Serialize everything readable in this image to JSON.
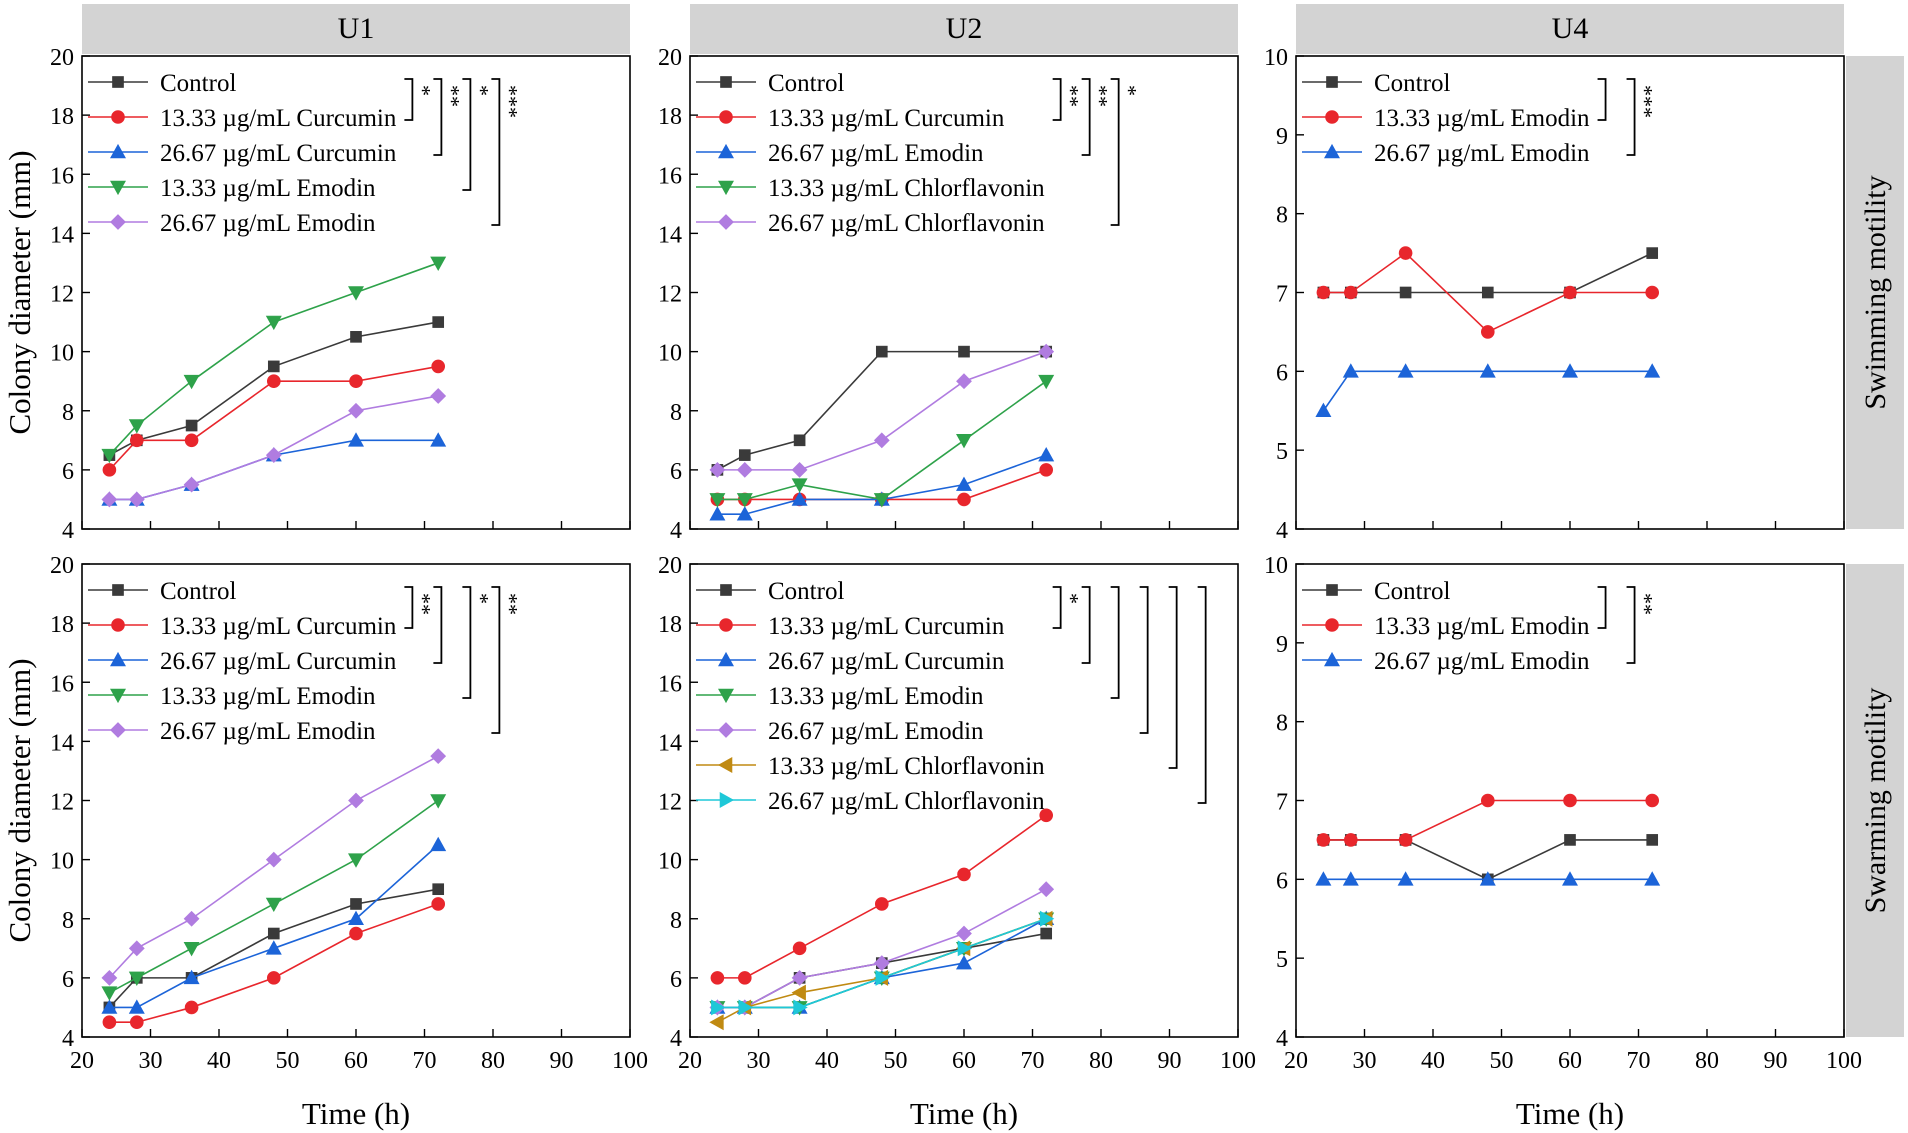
{
  "figure": {
    "column_titles": [
      "U1",
      "U2",
      "U4"
    ],
    "row_titles": [
      "Swimming motility",
      "Swarming motility"
    ],
    "xlabel": "Time (h)",
    "ylabel": "Colony diameter (mm)"
  },
  "colors": {
    "Control": "#3a3a3a",
    "Curcumin_13": "#e8262c",
    "Curcumin_26": "#1c64d8",
    "Emodin_13": "#2ea24a",
    "Emodin_26": "#b07ce0",
    "Chlorflavonin_13": "#c08a12",
    "Chlorflavonin_26": "#1ec8d8"
  },
  "chart_data": [
    {
      "type": "line",
      "panel": "U1",
      "row": "Swimming motility",
      "xlabel": "Time (h)",
      "ylabel": "Colony diameter (mm)",
      "xlim": [
        20,
        100
      ],
      "ylim": [
        4,
        20
      ],
      "xticks": [
        20,
        30,
        40,
        50,
        60,
        70,
        80,
        90,
        100
      ],
      "yticks": [
        4,
        6,
        8,
        10,
        12,
        14,
        16,
        18,
        20
      ],
      "series": [
        {
          "name": "Control",
          "marker": "square",
          "color": "#3a3a3a",
          "x": [
            24,
            28,
            36,
            48,
            60,
            72
          ],
          "y": [
            6.5,
            7,
            7.5,
            9.5,
            10.5,
            11
          ]
        },
        {
          "name": "13.33 µg/mL Curcumin",
          "marker": "circle",
          "color": "#e8262c",
          "x": [
            24,
            28,
            36,
            48,
            60,
            72
          ],
          "y": [
            6,
            7,
            7,
            9,
            9,
            9.5
          ]
        },
        {
          "name": "26.67 µg/mL Curcumin",
          "marker": "triangle-up",
          "color": "#1c64d8",
          "x": [
            24,
            28,
            36,
            48,
            60,
            72
          ],
          "y": [
            5,
            5,
            5.5,
            6.5,
            7,
            7
          ]
        },
        {
          "name": "13.33 µg/mL Emodin",
          "marker": "triangle-down",
          "color": "#2ea24a",
          "x": [
            24,
            28,
            36,
            48,
            60,
            72
          ],
          "y": [
            6.5,
            7.5,
            9,
            11,
            12,
            13
          ]
        },
        {
          "name": "26.67 µg/mL Emodin",
          "marker": "diamond",
          "color": "#b07ce0",
          "x": [
            24,
            28,
            36,
            48,
            60,
            72
          ],
          "y": [
            5,
            5,
            5.5,
            6.5,
            8,
            8.5
          ]
        }
      ],
      "significance": [
        {
          "from": 0,
          "to": 1,
          "label": "*"
        },
        {
          "from": 0,
          "to": 2,
          "label": "**"
        },
        {
          "from": 0,
          "to": 3,
          "label": "*"
        },
        {
          "from": 0,
          "to": 4,
          "label": "***"
        }
      ]
    },
    {
      "type": "line",
      "panel": "U2",
      "row": "Swimming motility",
      "xlabel": "Time (h)",
      "ylabel": "Colony diameter (mm)",
      "xlim": [
        20,
        100
      ],
      "ylim": [
        4,
        20
      ],
      "xticks": [
        20,
        30,
        40,
        50,
        60,
        70,
        80,
        90,
        100
      ],
      "yticks": [
        4,
        6,
        8,
        10,
        12,
        14,
        16,
        18,
        20
      ],
      "series": [
        {
          "name": "Control",
          "marker": "square",
          "color": "#3a3a3a",
          "x": [
            24,
            28,
            36,
            48,
            60,
            72
          ],
          "y": [
            6,
            6.5,
            7,
            10,
            10,
            10
          ]
        },
        {
          "name": "13.33 µg/mL Curcumin",
          "marker": "circle",
          "color": "#e8262c",
          "x": [
            24,
            28,
            36,
            48,
            60,
            72
          ],
          "y": [
            5,
            5,
            5,
            5,
            5,
            6
          ]
        },
        {
          "name": "26.67 µg/mL Emodin",
          "marker": "triangle-up",
          "color": "#1c64d8",
          "x": [
            24,
            28,
            36,
            48,
            60,
            72
          ],
          "y": [
            4.5,
            4.5,
            5,
            5,
            5.5,
            6.5
          ]
        },
        {
          "name": "13.33 µg/mL Chlorflavonin",
          "marker": "triangle-down",
          "color": "#2ea24a",
          "x": [
            24,
            28,
            36,
            48,
            60,
            72
          ],
          "y": [
            5,
            5,
            5.5,
            5,
            7,
            9
          ]
        },
        {
          "name": "26.67 µg/mL Chlorflavonin",
          "marker": "diamond",
          "color": "#b07ce0",
          "x": [
            24,
            28,
            36,
            48,
            60,
            72
          ],
          "y": [
            6,
            6,
            6,
            7,
            9,
            10
          ]
        }
      ],
      "significance": [
        {
          "from": 0,
          "to": 1,
          "label": "**"
        },
        {
          "from": 0,
          "to": 2,
          "label": "**"
        },
        {
          "from": 0,
          "to": 4,
          "label": "*"
        }
      ]
    },
    {
      "type": "line",
      "panel": "U4",
      "row": "Swimming motility",
      "xlabel": "Time (h)",
      "ylabel": "Colony diameter (mm)",
      "xlim": [
        20,
        100
      ],
      "ylim": [
        4,
        10
      ],
      "xticks": [
        20,
        30,
        40,
        50,
        60,
        70,
        80,
        90,
        100
      ],
      "yticks": [
        4,
        5,
        6,
        7,
        8,
        9,
        10
      ],
      "series": [
        {
          "name": "Control",
          "marker": "square",
          "color": "#3a3a3a",
          "x": [
            24,
            28,
            36,
            48,
            60,
            72
          ],
          "y": [
            7,
            7,
            7,
            7,
            7,
            7.5
          ]
        },
        {
          "name": "13.33 µg/mL Emodin",
          "marker": "circle",
          "color": "#e8262c",
          "x": [
            24,
            28,
            36,
            48,
            60,
            72
          ],
          "y": [
            7,
            7,
            7.5,
            6.5,
            7,
            7
          ]
        },
        {
          "name": "26.67 µg/mL Emodin",
          "marker": "triangle-up",
          "color": "#1c64d8",
          "x": [
            24,
            28,
            36,
            48,
            60,
            72
          ],
          "y": [
            5.5,
            6,
            6,
            6,
            6,
            6
          ]
        }
      ],
      "significance": [
        {
          "from": 0,
          "to": 1,
          "label": ""
        },
        {
          "from": 0,
          "to": 2,
          "label": "***"
        }
      ]
    },
    {
      "type": "line",
      "panel": "U1",
      "row": "Swarming motility",
      "xlabel": "Time (h)",
      "ylabel": "Colony diameter (mm)",
      "xlim": [
        20,
        100
      ],
      "ylim": [
        4,
        20
      ],
      "xticks": [
        20,
        30,
        40,
        50,
        60,
        70,
        80,
        90,
        100
      ],
      "yticks": [
        4,
        6,
        8,
        10,
        12,
        14,
        16,
        18,
        20
      ],
      "series": [
        {
          "name": "Control",
          "marker": "square",
          "color": "#3a3a3a",
          "x": [
            24,
            28,
            36,
            48,
            60,
            72
          ],
          "y": [
            5,
            6,
            6,
            7.5,
            8.5,
            9
          ]
        },
        {
          "name": "13.33 µg/mL Curcumin",
          "marker": "circle",
          "color": "#e8262c",
          "x": [
            24,
            28,
            36,
            48,
            60,
            72
          ],
          "y": [
            4.5,
            4.5,
            5,
            6,
            7.5,
            8.5
          ]
        },
        {
          "name": "26.67 µg/mL Curcumin",
          "marker": "triangle-up",
          "color": "#1c64d8",
          "x": [
            24,
            28,
            36,
            48,
            60,
            72
          ],
          "y": [
            5,
            5,
            6,
            7,
            8,
            10.5
          ]
        },
        {
          "name": "13.33 µg/mL Emodin",
          "marker": "triangle-down",
          "color": "#2ea24a",
          "x": [
            24,
            28,
            36,
            48,
            60,
            72
          ],
          "y": [
            5.5,
            6,
            7,
            8.5,
            10,
            12
          ]
        },
        {
          "name": "26.67 µg/mL Emodin",
          "marker": "diamond",
          "color": "#b07ce0",
          "x": [
            24,
            28,
            36,
            48,
            60,
            72
          ],
          "y": [
            6,
            7,
            8,
            10,
            12,
            13.5
          ]
        }
      ],
      "significance": [
        {
          "from": 0,
          "to": 1,
          "label": "**"
        },
        {
          "from": 0,
          "to": 2,
          "label": ""
        },
        {
          "from": 0,
          "to": 3,
          "label": "*"
        },
        {
          "from": 0,
          "to": 4,
          "label": "**"
        }
      ]
    },
    {
      "type": "line",
      "panel": "U2",
      "row": "Swarming motility",
      "xlabel": "Time (h)",
      "ylabel": "Colony diameter (mm)",
      "xlim": [
        20,
        100
      ],
      "ylim": [
        4,
        20
      ],
      "xticks": [
        20,
        30,
        40,
        50,
        60,
        70,
        80,
        90,
        100
      ],
      "yticks": [
        4,
        6,
        8,
        10,
        12,
        14,
        16,
        18,
        20
      ],
      "series": [
        {
          "name": "Control",
          "marker": "square",
          "color": "#3a3a3a",
          "x": [
            24,
            28,
            36,
            48,
            60,
            72
          ],
          "y": [
            5,
            5,
            6,
            6.5,
            7,
            7.5
          ]
        },
        {
          "name": "13.33 µg/mL Curcumin",
          "marker": "circle",
          "color": "#e8262c",
          "x": [
            24,
            28,
            36,
            48,
            60,
            72
          ],
          "y": [
            6,
            6,
            7,
            8.5,
            9.5,
            11.5
          ]
        },
        {
          "name": "26.67 µg/mL Curcumin",
          "marker": "triangle-up",
          "color": "#1c64d8",
          "x": [
            24,
            28,
            36,
            48,
            60,
            72
          ],
          "y": [
            5,
            5,
            5,
            6,
            6.5,
            8
          ]
        },
        {
          "name": "13.33 µg/mL Emodin",
          "marker": "triangle-down",
          "color": "#2ea24a",
          "x": [
            24,
            28,
            36,
            48,
            60,
            72
          ],
          "y": [
            5,
            5,
            5,
            6,
            7,
            8
          ]
        },
        {
          "name": "26.67 µg/mL Emodin",
          "marker": "diamond",
          "color": "#b07ce0",
          "x": [
            24,
            28,
            36,
            48,
            60,
            72
          ],
          "y": [
            5,
            5,
            6,
            6.5,
            7.5,
            9
          ]
        },
        {
          "name": "13.33 µg/mL Chlorflavonin",
          "marker": "triangle-left",
          "color": "#c08a12",
          "x": [
            24,
            28,
            36,
            48,
            60,
            72
          ],
          "y": [
            4.5,
            5,
            5.5,
            6,
            7,
            8
          ]
        },
        {
          "name": "26.67 µg/mL Chlorflavonin",
          "marker": "triangle-right",
          "color": "#1ec8d8",
          "x": [
            24,
            28,
            36,
            48,
            60,
            72
          ],
          "y": [
            5,
            5,
            5,
            6,
            7,
            8
          ]
        }
      ],
      "significance": [
        {
          "from": 0,
          "to": 1,
          "label": "*"
        },
        {
          "from": 0,
          "to": 2,
          "label": ""
        },
        {
          "from": 0,
          "to": 3,
          "label": ""
        },
        {
          "from": 0,
          "to": 4,
          "label": ""
        },
        {
          "from": 0,
          "to": 5,
          "label": ""
        },
        {
          "from": 0,
          "to": 6,
          "label": ""
        }
      ]
    },
    {
      "type": "line",
      "panel": "U4",
      "row": "Swarming motility",
      "xlabel": "Time (h)",
      "ylabel": "Colony diameter (mm)",
      "xlim": [
        20,
        100
      ],
      "ylim": [
        4,
        10
      ],
      "xticks": [
        20,
        30,
        40,
        50,
        60,
        70,
        80,
        90,
        100
      ],
      "yticks": [
        4,
        5,
        6,
        7,
        8,
        9,
        10
      ],
      "series": [
        {
          "name": "Control",
          "marker": "square",
          "color": "#3a3a3a",
          "x": [
            24,
            28,
            36,
            48,
            60,
            72
          ],
          "y": [
            6.5,
            6.5,
            6.5,
            6,
            6.5,
            6.5
          ]
        },
        {
          "name": "13.33 µg/mL Emodin",
          "marker": "circle",
          "color": "#e8262c",
          "x": [
            24,
            28,
            36,
            48,
            60,
            72
          ],
          "y": [
            6.5,
            6.5,
            6.5,
            7,
            7,
            7
          ]
        },
        {
          "name": "26.67 µg/mL Emodin",
          "marker": "triangle-up",
          "color": "#1c64d8",
          "x": [
            24,
            28,
            36,
            48,
            60,
            72
          ],
          "y": [
            6,
            6,
            6,
            6,
            6,
            6
          ]
        }
      ],
      "significance": [
        {
          "from": 0,
          "to": 1,
          "label": ""
        },
        {
          "from": 0,
          "to": 2,
          "label": "**"
        }
      ]
    }
  ]
}
